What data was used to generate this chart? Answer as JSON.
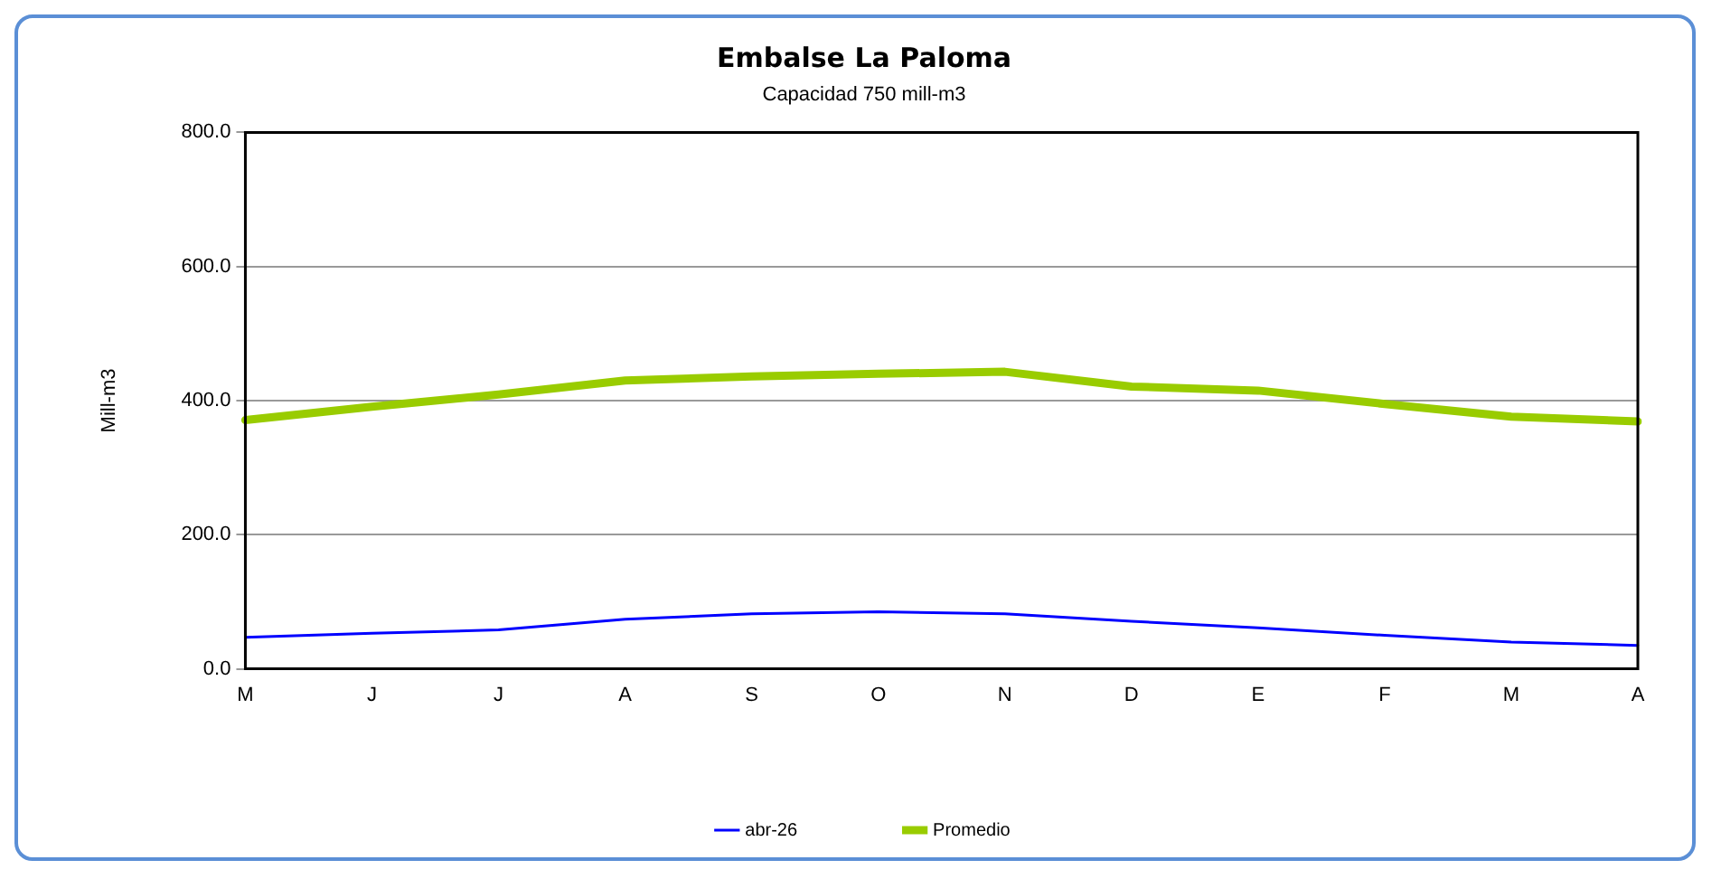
{
  "chart_data": {
    "type": "line",
    "title": "Embalse La Paloma",
    "subtitle": "Capacidad 750 mill-m3",
    "ylabel": "Mill-m3",
    "categories": [
      "M",
      "J",
      "J",
      "A",
      "S",
      "O",
      "N",
      "D",
      "E",
      "F",
      "M",
      "A"
    ],
    "series": [
      {
        "name": "abr-26",
        "color": "#0000ff",
        "values": [
          47,
          53,
          58,
          74,
          82,
          85,
          82,
          71,
          61,
          50,
          40,
          35
        ]
      },
      {
        "name": "Promedio",
        "color": "#99cc00",
        "values": [
          371,
          391,
          409,
          430,
          436,
          440,
          443,
          421,
          415,
          395,
          376,
          369
        ]
      }
    ],
    "ylim": [
      0,
      800
    ],
    "yticks": [
      {
        "value": 0,
        "label": "0.0"
      },
      {
        "value": 200,
        "label": "200.0"
      },
      {
        "value": 400,
        "label": "400.0"
      },
      {
        "value": 600,
        "label": "600.0"
      },
      {
        "value": 800,
        "label": "800.0"
      }
    ],
    "grid": "y",
    "legend": "bottom",
    "marker": "none",
    "line_style": "solid"
  }
}
